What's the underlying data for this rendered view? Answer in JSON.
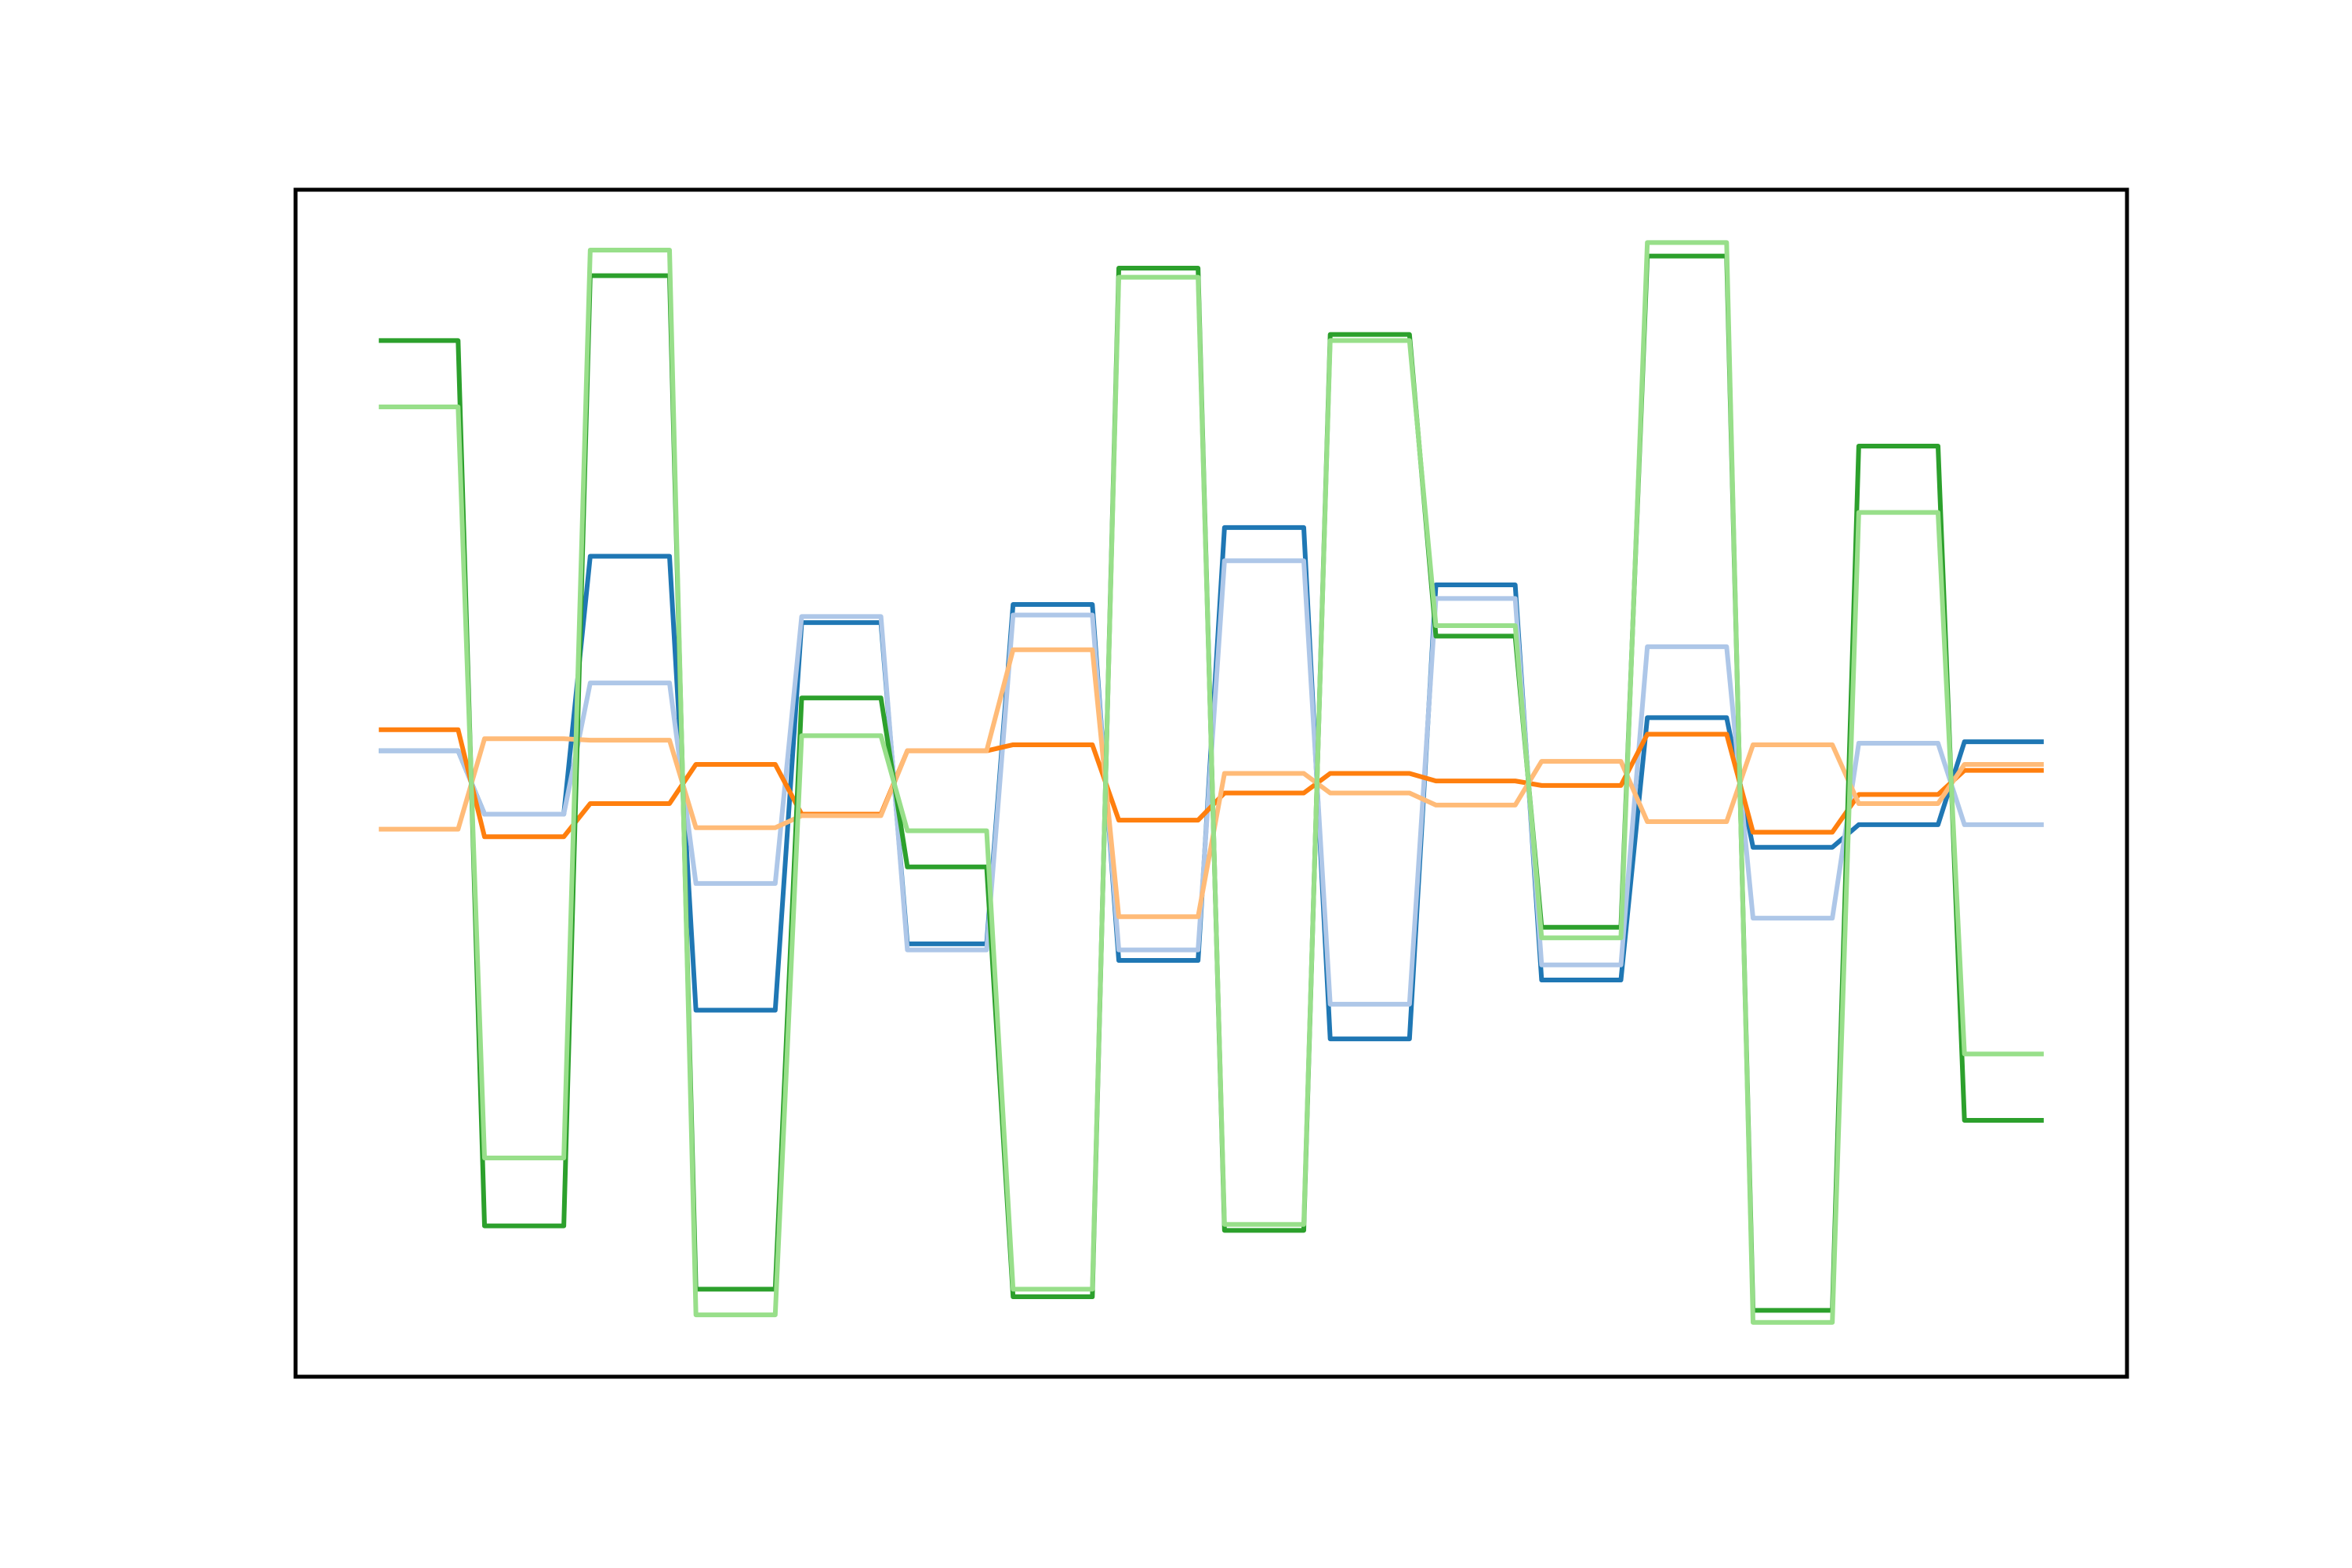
{
  "chart_data": {
    "type": "line",
    "x": [
      0,
      0.75,
      1,
      1.75,
      2,
      2.75,
      3,
      3.75,
      4,
      4.75,
      5,
      5.75,
      6,
      6.75,
      7,
      7.75,
      8,
      8.75,
      9,
      9.75,
      10,
      10.75,
      11,
      11.75,
      12,
      12.75,
      13,
      13.75,
      14,
      14.75,
      15,
      15.75
    ],
    "xlim": [
      -0.7875,
      16.5375
    ],
    "ylim": [
      -3.93,
      3.94
    ],
    "series": [
      {
        "color": "#1f77b4",
        "values": [
          0.22,
          0.22,
          -0.2,
          -0.2,
          1.51,
          1.51,
          -1.5,
          -1.5,
          1.07,
          1.07,
          -1.06,
          -1.06,
          1.19,
          1.19,
          -1.17,
          -1.17,
          1.7,
          1.7,
          -1.69,
          -1.69,
          1.32,
          1.32,
          -1.3,
          -1.3,
          0.44,
          0.44,
          -0.42,
          -0.42,
          -0.27,
          -0.27,
          0.28,
          0.28
        ]
      },
      {
        "color": "#aec7e8",
        "values": [
          0.22,
          0.22,
          -0.2,
          -0.2,
          0.67,
          0.67,
          -0.66,
          -0.66,
          1.11,
          1.11,
          -1.1,
          -1.1,
          1.12,
          1.12,
          -1.1,
          -1.1,
          1.48,
          1.48,
          -1.46,
          -1.46,
          1.23,
          1.23,
          -1.2,
          -1.2,
          0.91,
          0.91,
          -0.89,
          -0.89,
          0.27,
          0.27,
          -0.27,
          -0.27
        ]
      },
      {
        "color": "#ff7f0e",
        "values": [
          0.36,
          0.36,
          -0.35,
          -0.35,
          -0.13,
          -0.13,
          0.13,
          0.13,
          -0.2,
          -0.2,
          0.22,
          0.22,
          0.26,
          0.26,
          -0.24,
          -0.24,
          -0.06,
          -0.06,
          0.07,
          0.07,
          0.02,
          0.02,
          -0.01,
          -0.01,
          0.33,
          0.33,
          -0.32,
          -0.32,
          -0.07,
          -0.07,
          0.09,
          0.09
        ]
      },
      {
        "color": "#ffbb78",
        "values": [
          -0.3,
          -0.3,
          0.3,
          0.3,
          0.29,
          0.29,
          -0.29,
          -0.29,
          -0.21,
          -0.21,
          0.22,
          0.22,
          0.89,
          0.89,
          -0.88,
          -0.88,
          0.07,
          0.07,
          -0.06,
          -0.06,
          -0.14,
          -0.14,
          0.15,
          0.15,
          -0.25,
          -0.25,
          0.26,
          0.26,
          -0.13,
          -0.13,
          0.13,
          0.13
        ]
      },
      {
        "color": "#2ca02c",
        "values": [
          2.94,
          2.94,
          -2.93,
          -2.93,
          3.37,
          3.37,
          -3.35,
          -3.35,
          0.57,
          0.57,
          -0.55,
          -0.55,
          -3.4,
          -3.4,
          3.42,
          3.42,
          -2.96,
          -2.96,
          2.98,
          2.98,
          0.98,
          0.98,
          -0.95,
          -0.95,
          3.5,
          3.5,
          -3.49,
          -3.49,
          2.24,
          2.24,
          -2.23,
          -2.23
        ]
      },
      {
        "color": "#98df8a",
        "values": [
          2.5,
          2.5,
          -2.48,
          -2.48,
          3.54,
          3.54,
          -3.52,
          -3.52,
          0.32,
          0.32,
          -0.31,
          -0.31,
          -3.35,
          -3.35,
          3.36,
          3.36,
          -2.92,
          -2.92,
          2.94,
          2.94,
          1.05,
          1.05,
          -1.02,
          -1.02,
          3.59,
          3.59,
          -3.57,
          -3.57,
          1.8,
          1.8,
          -1.79,
          -1.79
        ]
      }
    ]
  }
}
